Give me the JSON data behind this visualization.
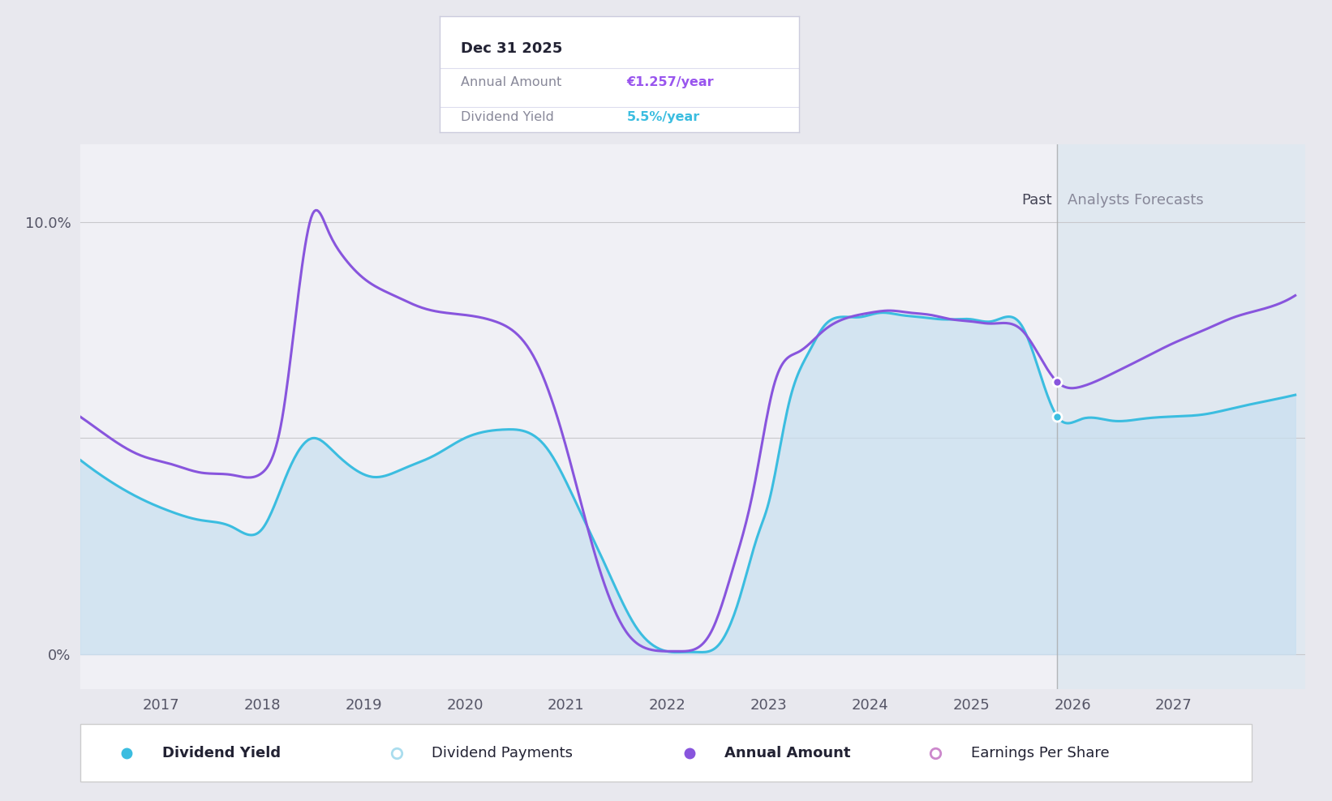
{
  "background_color": "#e8e8ee",
  "plot_bg_color": "#f0f0f5",
  "forecast_bg_color": "#e0e8f0",
  "grid_color": "#c8c8cc",
  "dividend_yield_color": "#3bbde0",
  "annual_amount_color": "#8855dd",
  "fill_color": "#c8dff0",
  "fill_alpha": 0.7,
  "xlim_left": 2016.2,
  "xlim_right": 2028.3,
  "ylim_bottom": -0.8,
  "ylim_top": 11.8,
  "ytick_positions": [
    0,
    5.0,
    10.0
  ],
  "ytick_labels": [
    "0%",
    "",
    "10.0%"
  ],
  "xtick_positions": [
    2017,
    2018,
    2019,
    2020,
    2021,
    2022,
    2023,
    2024,
    2025,
    2026,
    2027
  ],
  "forecast_x": 2025.85,
  "dividend_yield_x": [
    2016.2,
    2016.5,
    2016.8,
    2017.1,
    2017.4,
    2017.7,
    2018.0,
    2018.25,
    2018.5,
    2018.7,
    2018.9,
    2019.1,
    2019.4,
    2019.7,
    2020.0,
    2020.4,
    2020.8,
    2021.1,
    2021.4,
    2021.7,
    2021.9,
    2022.05,
    2022.15,
    2022.3,
    2022.5,
    2022.7,
    2022.9,
    2023.0,
    2023.2,
    2023.4,
    2023.55,
    2023.7,
    2023.9,
    2024.1,
    2024.3,
    2024.5,
    2024.7,
    2024.85,
    2025.0,
    2025.2,
    2025.5,
    2025.85,
    2026.1,
    2026.4,
    2026.7,
    2027.0,
    2027.3,
    2027.6,
    2027.9,
    2028.2
  ],
  "dividend_yield_y": [
    4.5,
    4.0,
    3.6,
    3.3,
    3.1,
    2.95,
    2.9,
    4.2,
    5.0,
    4.7,
    4.3,
    4.1,
    4.3,
    4.6,
    5.0,
    5.2,
    4.8,
    3.5,
    2.0,
    0.6,
    0.15,
    0.05,
    0.05,
    0.05,
    0.2,
    1.2,
    2.8,
    3.5,
    5.8,
    7.0,
    7.6,
    7.8,
    7.8,
    7.9,
    7.85,
    7.8,
    7.75,
    7.75,
    7.75,
    7.7,
    7.6,
    5.5,
    5.45,
    5.4,
    5.45,
    5.5,
    5.55,
    5.7,
    5.85,
    6.0
  ],
  "annual_amount_x": [
    2016.2,
    2016.5,
    2016.8,
    2017.1,
    2017.4,
    2017.7,
    2018.0,
    2018.2,
    2018.35,
    2018.5,
    2018.65,
    2018.8,
    2019.0,
    2019.3,
    2019.6,
    2020.0,
    2020.3,
    2020.7,
    2021.0,
    2021.3,
    2021.6,
    2021.85,
    2022.0,
    2022.1,
    2022.25,
    2022.45,
    2022.65,
    2022.85,
    2023.05,
    2023.3,
    2023.55,
    2023.8,
    2024.0,
    2024.2,
    2024.4,
    2024.6,
    2024.8,
    2025.0,
    2025.2,
    2025.5,
    2025.85,
    2026.1,
    2026.4,
    2026.7,
    2027.0,
    2027.3,
    2027.6,
    2027.9,
    2028.2
  ],
  "annual_amount_y": [
    5.5,
    5.0,
    4.6,
    4.4,
    4.2,
    4.15,
    4.2,
    5.5,
    8.2,
    10.2,
    9.8,
    9.2,
    8.7,
    8.3,
    8.0,
    7.85,
    7.7,
    6.8,
    4.8,
    2.2,
    0.5,
    0.1,
    0.07,
    0.07,
    0.1,
    0.6,
    2.0,
    3.8,
    6.2,
    7.0,
    7.5,
    7.8,
    7.9,
    7.95,
    7.9,
    7.85,
    7.75,
    7.7,
    7.65,
    7.5,
    6.3,
    6.2,
    6.5,
    6.85,
    7.2,
    7.5,
    7.8,
    8.0,
    8.3
  ],
  "tooltip_date": "Dec 31 2025",
  "tooltip_label1": "Annual Amount",
  "tooltip_value1": "€1.257/year",
  "tooltip_label2": "Dividend Yield",
  "tooltip_value2": "5.5%/year",
  "tooltip_value1_color": "#9955ee",
  "tooltip_value2_color": "#3bbde0",
  "tooltip_label_color": "#888899",
  "tooltip_date_color": "#222233",
  "past_label": "Past",
  "forecast_label": "Analysts Forecasts",
  "past_label_color": "#444455",
  "forecast_label_color": "#888899",
  "legend_items": [
    {
      "label": "Dividend Yield",
      "color": "#3bbde0",
      "filled": true,
      "bold": true
    },
    {
      "label": "Dividend Payments",
      "color": "#aaddee",
      "filled": false,
      "bold": false
    },
    {
      "label": "Annual Amount",
      "color": "#8855dd",
      "filled": true,
      "bold": true
    },
    {
      "label": "Earnings Per Share",
      "color": "#cc88cc",
      "filled": false,
      "bold": false
    }
  ],
  "point_yield_x": 2025.85,
  "point_yield_y": 5.5,
  "point_amount_x": 2025.85,
  "point_amount_y": 6.3
}
